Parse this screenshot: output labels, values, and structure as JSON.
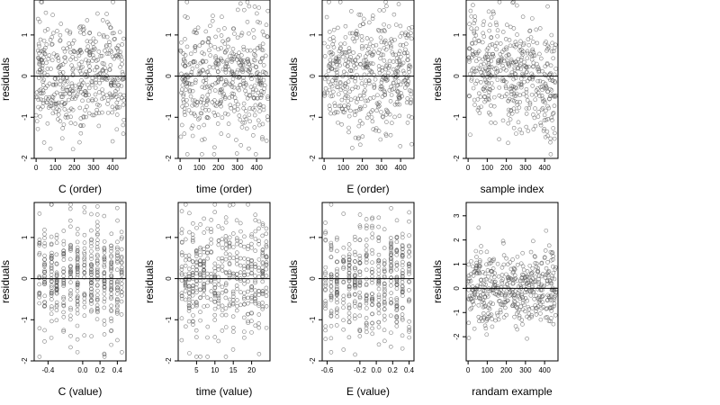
{
  "chart_data": [
    {
      "type": "scatter",
      "xlabel": "C (order)",
      "ylabel": "residuals",
      "xlim": [
        -10,
        470
      ],
      "ylim": [
        -2,
        1.85
      ],
      "xticks": [
        0,
        100,
        200,
        300,
        400
      ],
      "xtick_labels": [
        "0",
        "100",
        "200",
        "300",
        "400"
      ],
      "yticks": [
        -2,
        -1,
        0,
        1
      ],
      "ytick_labels": [
        "-2",
        "-1",
        "0",
        "1"
      ],
      "hline": 0,
      "n_points": 460,
      "trend": "none",
      "x_discrete": [],
      "points_seed": 11,
      "ymin_data": -1.9,
      "ymax_data": 1.8
    },
    {
      "type": "scatter",
      "xlabel": "time (order)",
      "ylabel": "residuals",
      "xlim": [
        -10,
        470
      ],
      "ylim": [
        -2,
        1.85
      ],
      "xticks": [
        0,
        100,
        200,
        300,
        400
      ],
      "xtick_labels": [
        "0",
        "100",
        "200",
        "300",
        "400"
      ],
      "yticks": [
        -2,
        -1,
        0,
        1
      ],
      "ytick_labels": [
        "-2",
        "-1",
        "0",
        "1"
      ],
      "hline": 0,
      "n_points": 460,
      "trend": "none",
      "x_discrete": [],
      "points_seed": 23,
      "ymin_data": -1.9,
      "ymax_data": 1.8
    },
    {
      "type": "scatter",
      "xlabel": "E (order)",
      "ylabel": "residuals",
      "xlim": [
        -10,
        470
      ],
      "ylim": [
        -2,
        1.85
      ],
      "xticks": [
        0,
        100,
        200,
        300,
        400
      ],
      "xtick_labels": [
        "0",
        "100",
        "200",
        "300",
        "400"
      ],
      "yticks": [
        -2,
        -1,
        0,
        1
      ],
      "ytick_labels": [
        "-2",
        "-1",
        "0",
        "1"
      ],
      "hline": 0,
      "n_points": 460,
      "trend": "none",
      "x_discrete": [],
      "points_seed": 37,
      "ymin_data": -1.9,
      "ymax_data": 1.8
    },
    {
      "type": "scatter",
      "xlabel": "sample index",
      "ylabel": "residuals",
      "xlim": [
        -10,
        470
      ],
      "ylim": [
        -2,
        1.85
      ],
      "xticks": [
        0,
        100,
        200,
        300,
        400
      ],
      "xtick_labels": [
        "0",
        "100",
        "200",
        "300",
        "400"
      ],
      "yticks": [
        -2,
        -1,
        0,
        1
      ],
      "ytick_labels": [
        "-2",
        "-1",
        "0",
        "1"
      ],
      "hline": 0,
      "n_points": 460,
      "trend": "decreasing",
      "x_discrete": [],
      "points_seed": 41,
      "ymin_data": -1.9,
      "ymax_data": 1.8
    },
    {
      "type": "scatter",
      "xlabel": "C (value)",
      "ylabel": "residuals",
      "xlim": [
        -0.56,
        0.5
      ],
      "ylim": [
        -2,
        1.85
      ],
      "xticks": [
        -0.4,
        0.0,
        0.2,
        0.4
      ],
      "xtick_labels": [
        "-0.4",
        "0.0",
        "0.2",
        "0.4"
      ],
      "yticks": [
        -2,
        -1,
        0,
        1
      ],
      "ytick_labels": [
        "-2",
        "-1",
        "0",
        "1"
      ],
      "hline": 0,
      "n_points": 460,
      "trend": "none",
      "x_discrete": [
        -0.5,
        -0.44,
        -0.36,
        -0.3,
        -0.22,
        -0.14,
        -0.06,
        0.02,
        0.1,
        0.17,
        0.25,
        0.33,
        0.4,
        0.45
      ],
      "points_seed": 53,
      "ymin_data": -1.9,
      "ymax_data": 1.8
    },
    {
      "type": "scatter",
      "xlabel": "time (value)",
      "ylabel": "residuals",
      "xlim": [
        0,
        25
      ],
      "ylim": [
        -2,
        1.85
      ],
      "xticks": [
        5,
        10,
        15,
        20
      ],
      "xtick_labels": [
        "5",
        "10",
        "15",
        "20"
      ],
      "yticks": [
        -2,
        -1,
        0,
        1
      ],
      "ytick_labels": [
        "-2",
        "-1",
        "0",
        "1"
      ],
      "hline": 0,
      "n_points": 460,
      "trend": "none",
      "x_discrete": [
        1,
        2,
        3,
        4,
        5,
        6,
        7,
        8,
        9,
        10,
        11,
        12,
        13,
        14,
        15,
        16,
        17,
        18,
        19,
        20,
        21,
        22,
        23,
        24
      ],
      "points_seed": 67,
      "ymin_data": -1.9,
      "ymax_data": 1.8
    },
    {
      "type": "scatter",
      "xlabel": "E (value)",
      "ylabel": "residuals",
      "xlim": [
        -0.66,
        0.46
      ],
      "ylim": [
        -2,
        1.85
      ],
      "xticks": [
        -0.6,
        -0.2,
        0.0,
        0.2,
        0.4
      ],
      "xtick_labels": [
        "-0.6",
        "-0.2",
        "0.0",
        "0.2",
        "0.4"
      ],
      "yticks": [
        -2,
        -1,
        0,
        1
      ],
      "ytick_labels": [
        "-2",
        "-1",
        "0",
        "1"
      ],
      "hline": 0,
      "n_points": 460,
      "trend": "none",
      "x_discrete": [
        -0.62,
        -0.55,
        -0.48,
        -0.4,
        -0.33,
        -0.26,
        -0.2,
        -0.12,
        -0.05,
        0.03,
        0.1,
        0.18,
        0.25,
        0.32,
        0.4
      ],
      "points_seed": 79,
      "ymin_data": -1.9,
      "ymax_data": 1.8
    },
    {
      "type": "scatter",
      "xlabel": "randam example",
      "ylabel": "residuals",
      "xlim": [
        -10,
        470
      ],
      "ylim": [
        -3,
        3.55
      ],
      "xticks": [
        0,
        100,
        200,
        300,
        400
      ],
      "xtick_labels": [
        "0",
        "100",
        "200",
        "300",
        "400"
      ],
      "yticks": [
        -2,
        -1,
        0,
        1,
        2,
        3
      ],
      "ytick_labels": [
        "-2",
        "-1",
        "0",
        "1",
        "2",
        "3"
      ],
      "hline": 0,
      "n_points": 460,
      "trend": "none",
      "x_discrete": [],
      "points_seed": 97,
      "ymin_data": -2.8,
      "ymax_data": 3.3
    }
  ]
}
